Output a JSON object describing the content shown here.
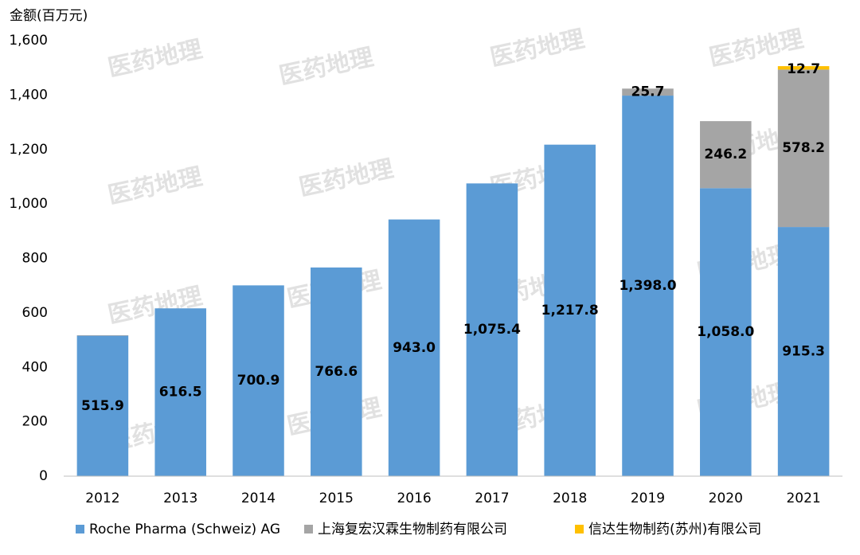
{
  "chart_data": {
    "type": "stacked_bar",
    "y_label": "金额(百万元)",
    "watermark": "医药地理",
    "categories": [
      "2012",
      "2013",
      "2014",
      "2015",
      "2016",
      "2017",
      "2018",
      "2019",
      "2020",
      "2021"
    ],
    "series": [
      {
        "name": "Roche Pharma (Schweiz) AG",
        "color": "#5b9bd5",
        "values": [
          515.9,
          616.5,
          700.9,
          766.6,
          943.0,
          1075.4,
          1217.8,
          1398.0,
          1058.0,
          915.3
        ],
        "value_labels": [
          "515.9",
          "616.5",
          "700.9",
          "766.6",
          "943.0",
          "1,075.4",
          "1,217.8",
          "1,398.0",
          "1,058.0",
          "915.3"
        ]
      },
      {
        "name": "上海复宏汉霖生物制药有限公司",
        "color": "#a5a5a5",
        "values": [
          2,
          null,
          null,
          null,
          null,
          null,
          null,
          25.7,
          246.2,
          578.2
        ],
        "value_labels": [
          null,
          null,
          null,
          null,
          null,
          null,
          null,
          "25.7",
          "246.2",
          "578.2"
        ]
      },
      {
        "name": "信达生物制药(苏州)有限公司",
        "color": "#ffc000",
        "values": [
          null,
          null,
          null,
          null,
          null,
          null,
          null,
          null,
          null,
          12.7
        ],
        "value_labels": [
          null,
          null,
          null,
          null,
          null,
          null,
          null,
          null,
          null,
          "12.7"
        ]
      }
    ],
    "ylim": [
      0,
      1600
    ],
    "yticks": [
      0,
      200,
      400,
      600,
      800,
      {
        "value": 1000,
        "label": "1,000"
      },
      {
        "value": 1200,
        "label": "1,200"
      },
      {
        "value": 1400,
        "label": "1,400"
      },
      {
        "value": 1600,
        "label": "1,600"
      }
    ],
    "grid": false
  }
}
